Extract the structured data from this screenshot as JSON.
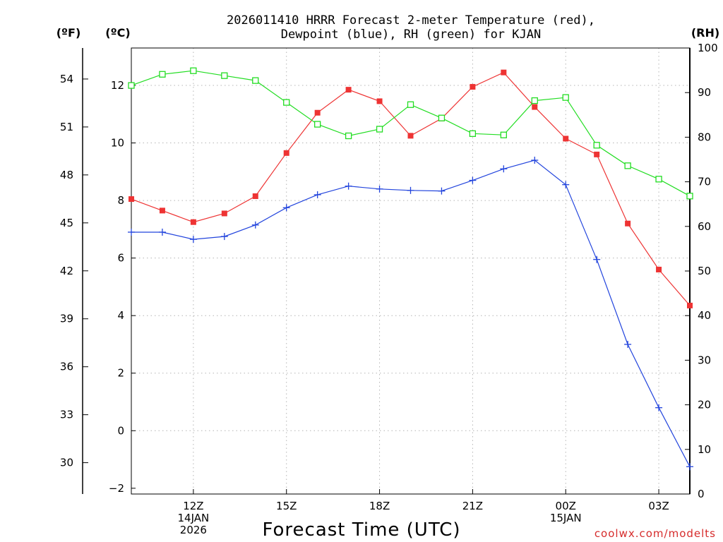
{
  "chart_data": {
    "type": "line",
    "title_lines": [
      "2026011410 HRRR Forecast 2-meter Temperature (red),",
      "Dewpoint (blue), RH (green) for KJAN"
    ],
    "xlabel": "Forecast Time (UTC)",
    "credit": "coolwx.com/modelts",
    "unit_labels": {
      "fahrenheit": "(ºF)",
      "celsius": "(ºC)",
      "rh": "(RH)"
    },
    "x_hours": [
      10,
      11,
      12,
      13,
      14,
      15,
      16,
      17,
      18,
      19,
      20,
      21,
      22,
      23,
      24,
      25,
      26,
      27,
      28
    ],
    "xlim": [
      10,
      28
    ],
    "x_ticks": [
      {
        "hour": 12,
        "lines": [
          "12Z",
          "14JAN",
          "2026"
        ]
      },
      {
        "hour": 15,
        "lines": [
          "15Z"
        ]
      },
      {
        "hour": 18,
        "lines": [
          "18Z"
        ]
      },
      {
        "hour": 21,
        "lines": [
          "21Z"
        ]
      },
      {
        "hour": 24,
        "lines": [
          "00Z",
          "15JAN"
        ]
      },
      {
        "hour": 27,
        "lines": [
          "03Z"
        ]
      }
    ],
    "ylim_celsius": [
      -2.2,
      13.3
    ],
    "celsius_ticks": [
      -2,
      0,
      2,
      4,
      6,
      8,
      10,
      12
    ],
    "fahrenheit_ticks": [
      30,
      33,
      36,
      39,
      42,
      45,
      48,
      51,
      54
    ],
    "ylim_rh": [
      0,
      100
    ],
    "rh_ticks": [
      0,
      10,
      20,
      30,
      40,
      50,
      60,
      70,
      80,
      90,
      100
    ],
    "series": [
      {
        "name": "Temperature",
        "axis": "celsius",
        "color": "#ee3333",
        "marker": "filled-square",
        "values": [
          8.05,
          7.65,
          7.25,
          7.55,
          8.15,
          9.65,
          11.05,
          11.85,
          11.45,
          10.25,
          10.85,
          11.95,
          12.45,
          11.25,
          10.15,
          9.6,
          7.2,
          5.6,
          4.35
        ]
      },
      {
        "name": "Dewpoint",
        "axis": "celsius",
        "color": "#2244dd",
        "marker": "plus",
        "values": [
          6.9,
          6.9,
          6.65,
          6.75,
          7.15,
          7.75,
          8.2,
          8.5,
          8.4,
          8.35,
          8.33,
          8.7,
          9.1,
          9.4,
          8.55,
          5.95,
          3.0,
          0.8,
          -1.25
        ]
      },
      {
        "name": "Relative Humidity",
        "axis": "rh",
        "color": "#22dd22",
        "marker": "open-square",
        "values": [
          91.6,
          94.1,
          94.9,
          93.8,
          92.7,
          87.8,
          82.9,
          80.3,
          81.8,
          87.3,
          84.3,
          80.8,
          80.5,
          88.2,
          88.9,
          78.2,
          73.6,
          70.6,
          66.8
        ]
      }
    ]
  }
}
